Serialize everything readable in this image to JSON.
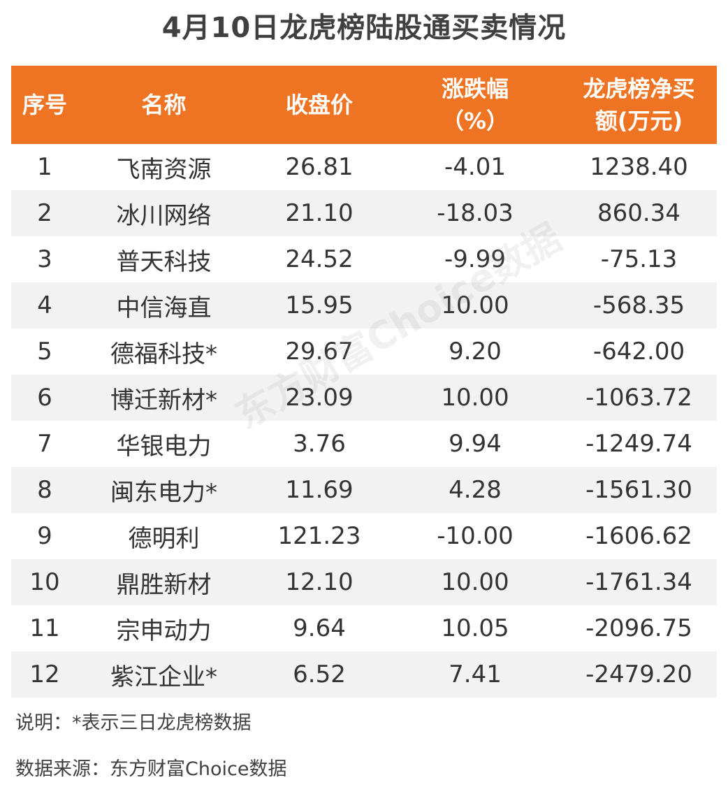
{
  "title": "4月10日龙虎榜陆股通买卖情况",
  "accent_color": "#ee7423",
  "table": {
    "headers": [
      "序号",
      "名称",
      "收盘价",
      "涨跌幅\n（%）",
      "龙虎榜净买\n额(万元)"
    ],
    "rows": [
      [
        "1",
        "飞南资源",
        "26.81",
        "-4.01",
        "1238.40"
      ],
      [
        "2",
        "冰川网络",
        "21.10",
        "-18.03",
        "860.34"
      ],
      [
        "3",
        "普天科技",
        "24.52",
        "-9.99",
        "-75.13"
      ],
      [
        "4",
        "中信海直",
        "15.95",
        "10.00",
        "-568.35"
      ],
      [
        "5",
        "德福科技*",
        "29.67",
        "9.20",
        "-642.00"
      ],
      [
        "6",
        "博迁新材*",
        "23.09",
        "10.00",
        "-1063.72"
      ],
      [
        "7",
        "华银电力",
        "3.76",
        "9.94",
        "-1249.74"
      ],
      [
        "8",
        "闽东电力*",
        "11.69",
        "4.28",
        "-1561.30"
      ],
      [
        "9",
        "德明利",
        "121.23",
        "-10.00",
        "-1606.62"
      ],
      [
        "10",
        "鼎胜新材",
        "12.10",
        "10.00",
        "-1761.34"
      ],
      [
        "11",
        "宗申动力",
        "9.64",
        "10.05",
        "-2096.75"
      ],
      [
        "12",
        "紫江企业*",
        "6.52",
        "7.41",
        "-2479.20"
      ]
    ]
  },
  "watermark": "东方财富Choice数据",
  "note": "说明：*表示三日龙虎榜数据",
  "source": "数据来源：东方财富Choice数据"
}
